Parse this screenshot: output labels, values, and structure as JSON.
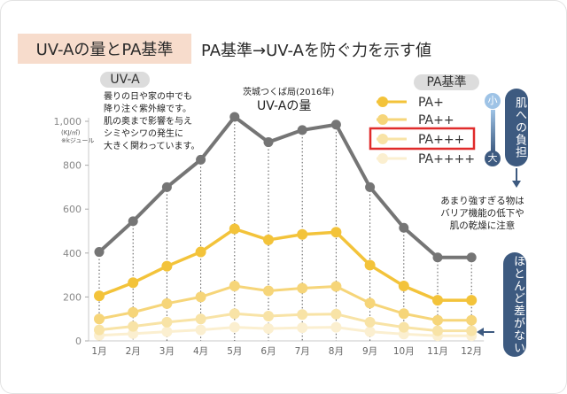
{
  "header": {
    "title": "UV-Aの量とPA基準",
    "subtitle": "PA基準→UV-Aを防ぐ力を示す値"
  },
  "labels": {
    "uva_pill": "UV-A",
    "pa_pill": "PA基準",
    "uva_note": [
      "曇りの日や家の中でも",
      "降り注ぐ紫外線です。",
      "肌の奥まで影響を与え",
      "シミやシワの発生に",
      "大きく関わっています。"
    ],
    "location": "茨城つくば局(2016年)",
    "uva_amount": "UV-Aの量",
    "y_unit_1": "(KJ/㎡)",
    "y_unit_2": "※kジュール",
    "small": "小",
    "large": "大",
    "skin_burden": "肌への負担",
    "strong_note": [
      "あまり強すぎる物は",
      "バリア機能の低下や",
      "肌の乾燥に注意"
    ],
    "almost_same": "ほとんど差がない"
  },
  "colors": {
    "uva": "#757575",
    "pa1": "#f3c33a",
    "pa2": "#f6d579",
    "pa3": "#f8e3a6",
    "pa4": "#fbefd0",
    "accent_navy": "#3d5a80",
    "accent_light": "#9ec3e6",
    "highlight_red": "#e02b2b"
  },
  "chart_data": {
    "type": "line",
    "categories": [
      "1月",
      "2月",
      "3月",
      "4月",
      "5月",
      "6月",
      "7月",
      "8月",
      "9月",
      "10月",
      "11月",
      "12月"
    ],
    "ylim": [
      0,
      1000
    ],
    "yticks": [
      0,
      200,
      400,
      600,
      800,
      1000
    ],
    "ytick_labels": [
      "0",
      "200",
      "400",
      "600",
      "800",
      "1,000"
    ],
    "series": [
      {
        "name": "UV-A",
        "values": [
          405,
          545,
          700,
          825,
          1020,
          905,
          960,
          985,
          700,
          515,
          380,
          380
        ]
      },
      {
        "name": "PA+",
        "values": [
          205,
          265,
          340,
          405,
          510,
          460,
          485,
          495,
          345,
          250,
          185,
          185
        ]
      },
      {
        "name": "PA++",
        "values": [
          100,
          130,
          170,
          200,
          250,
          228,
          240,
          248,
          172,
          124,
          94,
          94
        ]
      },
      {
        "name": "PA+++",
        "values": [
          50,
          66,
          85,
          100,
          124,
          113,
          120,
          122,
          85,
          62,
          46,
          46
        ]
      },
      {
        "name": "PA++++",
        "values": [
          25,
          33,
          42,
          50,
          62,
          56,
          60,
          62,
          42,
          31,
          23,
          23
        ]
      }
    ],
    "highlighted_series": "PA+++"
  }
}
